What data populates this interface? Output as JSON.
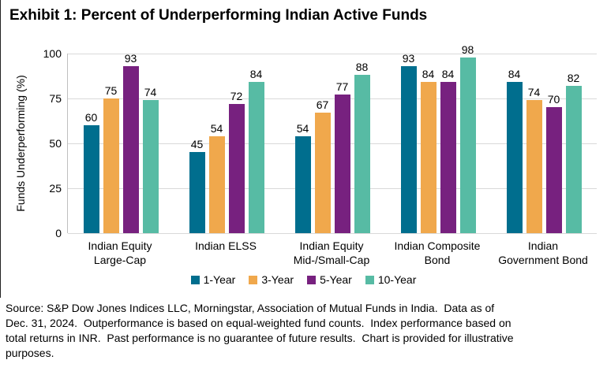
{
  "title": "Exhibit 1: Percent of Underperforming Indian Active Funds",
  "chart_data": {
    "type": "bar",
    "title": "Exhibit 1: Percent of Underperforming Indian Active Funds",
    "xlabel": "",
    "ylabel": "Funds Underperforming (%)",
    "ylim": [
      0,
      100
    ],
    "yticks": [
      0,
      25,
      50,
      75,
      100
    ],
    "grid": true,
    "legend_position": "bottom",
    "bar_value_labels": true,
    "categories": [
      "Indian Equity\nLarge-Cap",
      "Indian ELSS",
      "Indian Equity\nMid-/Small-Cap",
      "Indian Composite\nBond",
      "Indian\nGovernment Bond"
    ],
    "series": [
      {
        "name": "1-Year",
        "color": "#006E8E",
        "values": [
          60,
          45,
          54,
          93,
          84
        ]
      },
      {
        "name": "3-Year",
        "color": "#F0A84C",
        "values": [
          75,
          54,
          67,
          84,
          74
        ]
      },
      {
        "name": "5-Year",
        "color": "#77217F",
        "values": [
          93,
          72,
          77,
          84,
          70
        ]
      },
      {
        "name": "10-Year",
        "color": "#57BBA4",
        "values": [
          74,
          84,
          88,
          98,
          82
        ]
      }
    ],
    "colors": {
      "gridline": "#D9D9D9",
      "axis_line": "#BFBFBF",
      "text": "#000000"
    }
  },
  "footnote_lines": [
    "Source: S&P Dow Jones Indices LLC, Morningstar, Association of Mutual Funds in India.  Data as of",
    "Dec. 31, 2024.  Outperformance is based on equal-weighted fund counts.  Index performance based on",
    "total returns in INR.  Past performance is no guarantee of future results.  Chart is provided for illustrative",
    "purposes."
  ]
}
